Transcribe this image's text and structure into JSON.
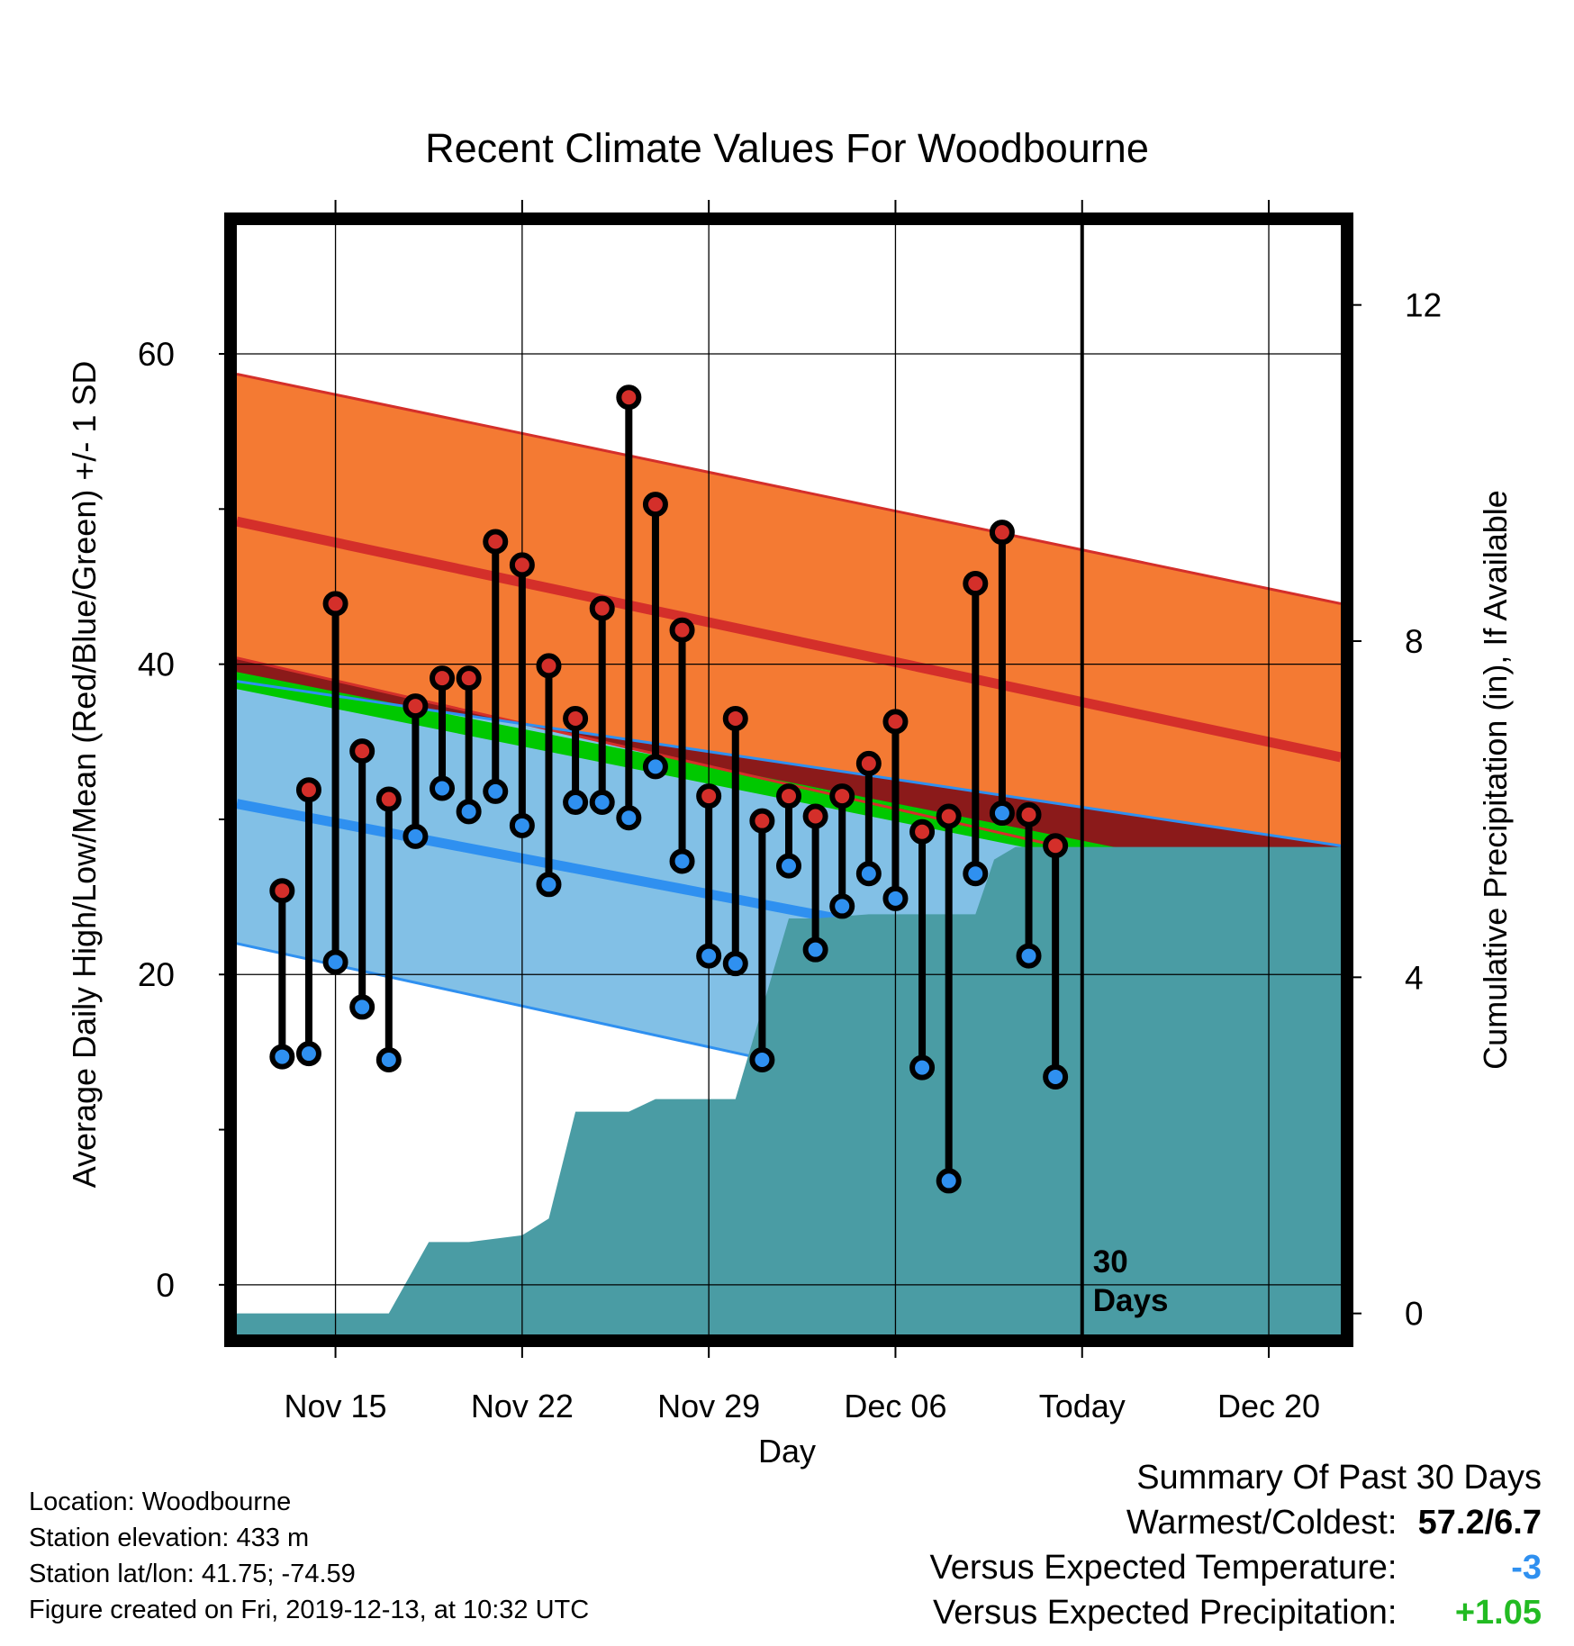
{
  "chart_data": {
    "type": "line",
    "title": "Recent Climate Values For Woodbourne",
    "xlabel": "Day",
    "ylabel": "Average Daily High/Low/Mean (Red/Blue/Green) +/- 1 SD",
    "y2label": "Cumulative Precipitation (in), If Available",
    "x_ticks": [
      "Nov 15",
      "Nov 22",
      "Nov 29",
      "Dec 06",
      "Today",
      "Dec 20"
    ],
    "x_tick_days": [
      15,
      22,
      29,
      36,
      43,
      50
    ],
    "xlim": [
      11.3,
      52.7
    ],
    "ylim": [
      -3.2,
      68.3
    ],
    "y_ticks": [
      0,
      20,
      40,
      60
    ],
    "y2lim": [
      -0.25,
      12.95
    ],
    "y2_ticks": [
      0,
      4,
      8,
      12
    ],
    "today_day": 43,
    "today_label": "30 Days",
    "grid": true,
    "colors": {
      "high_band": "#f47a33",
      "high_mean": "#d42f2a",
      "overlap": "#8b1a1a",
      "mean_band": "#00c800",
      "low_band": "#82c0e6",
      "low_mean": "#2f90f0",
      "precip": "#4a9ca4",
      "high_marker": "#d42f2a",
      "low_marker": "#2f90f0",
      "temp_anomaly": "#2f90f0",
      "precip_anomaly": "#22bb22"
    },
    "normals": {
      "days": [
        11.3,
        52.7
      ],
      "high_mean": [
        49.2,
        34.0
      ],
      "high_upper": [
        58.7,
        43.9
      ],
      "high_lower": [
        40.4,
        24.1
      ],
      "low_mean": [
        31.0,
        17.4
      ],
      "low_upper": [
        38.9,
        28.3
      ],
      "low_lower": [
        22.0,
        6.4
      ],
      "mean_upper": [
        39.5,
        25.3
      ],
      "mean_lower": [
        38.4,
        24.1
      ]
    },
    "series": [
      {
        "name": "Daily High",
        "x": [
          13,
          14,
          15,
          16,
          17,
          18,
          19,
          20,
          21,
          22,
          23,
          24,
          25,
          26,
          27,
          28,
          29,
          30,
          31,
          32,
          33,
          34,
          35,
          36,
          37,
          38,
          39,
          40,
          41,
          42
        ],
        "values": [
          25.4,
          31.9,
          43.9,
          34.4,
          31.3,
          37.3,
          39.1,
          39.1,
          47.9,
          46.4,
          39.9,
          36.5,
          43.6,
          57.2,
          50.3,
          42.2,
          31.5,
          36.5,
          29.9,
          31.5,
          30.2,
          31.5,
          33.6,
          36.3,
          29.2,
          30.2,
          45.2,
          48.5,
          30.3,
          28.3
        ]
      },
      {
        "name": "Daily Low",
        "x": [
          13,
          14,
          15,
          16,
          17,
          18,
          19,
          20,
          21,
          22,
          23,
          24,
          25,
          26,
          27,
          28,
          29,
          30,
          31,
          32,
          33,
          34,
          35,
          36,
          37,
          38,
          39,
          40,
          41,
          42
        ],
        "values": [
          14.7,
          14.9,
          20.8,
          17.9,
          14.5,
          28.9,
          32.0,
          30.5,
          31.8,
          29.6,
          25.8,
          31.1,
          31.1,
          30.1,
          33.4,
          27.3,
          21.2,
          20.7,
          14.5,
          27.0,
          21.6,
          24.4,
          26.5,
          24.9,
          14.0,
          6.7,
          26.5,
          30.4,
          21.2,
          13.4
        ]
      }
    ],
    "precipitation": {
      "x": [
        11.3,
        17.0,
        18.5,
        20.0,
        22.0,
        23.0,
        24.0,
        26.0,
        27.0,
        29.0,
        30.0,
        32.0,
        33.0,
        35.0,
        39.0,
        39.7,
        40.5,
        52.7
      ],
      "values": [
        0,
        0,
        0.85,
        0.85,
        0.93,
        1.13,
        2.4,
        2.4,
        2.55,
        2.55,
        2.55,
        4.7,
        4.7,
        4.75,
        4.75,
        5.4,
        5.55,
        5.55
      ]
    }
  },
  "footer": {
    "location": "Location: Woodbourne",
    "elevation": "Station elevation: 433 m",
    "latlon": "Station lat/lon: 41.75; -74.59",
    "created": "Figure created on Fri, 2019-12-13, at 10:32 UTC"
  },
  "summary": {
    "title": "Summary Of Past 30 Days",
    "warmest_coldest_label": "Warmest/Coldest:",
    "warmest_coldest_value": "57.2/6.7",
    "temp_label": "Versus Expected Temperature:",
    "temp_value": "-3",
    "precip_label": "Versus Expected Precipitation:",
    "precip_value": "+1.05"
  }
}
